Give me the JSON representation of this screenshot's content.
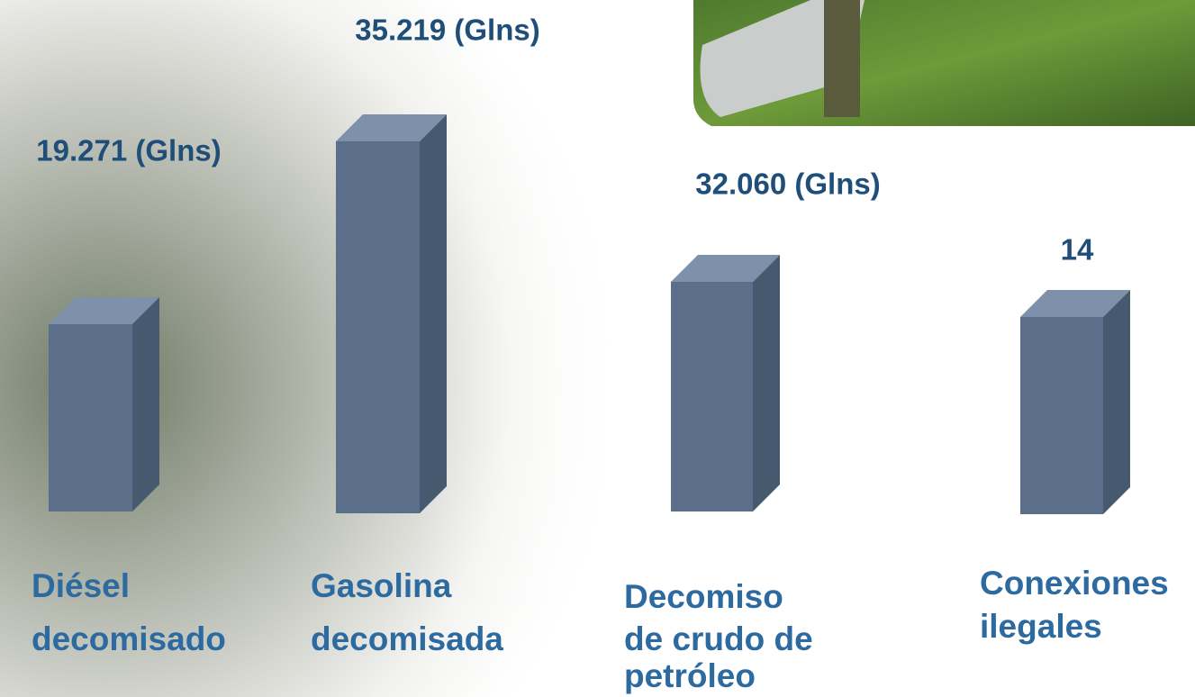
{
  "items": [
    {
      "value_label": "19.271 (Glns)",
      "label_lines": [
        "Diésel",
        "decomisado"
      ]
    },
    {
      "value_label": "35.219 (Glns)",
      "label_lines": [
        "Gasolina",
        "decomisada"
      ]
    },
    {
      "value_label": "32.060 (Glns)",
      "label_lines": [
        "Decomiso",
        "de crudo de",
        "petróleo"
      ]
    },
    {
      "value_label": "14",
      "label_lines": [
        "Conexiones",
        "ilegales"
      ]
    }
  ]
}
